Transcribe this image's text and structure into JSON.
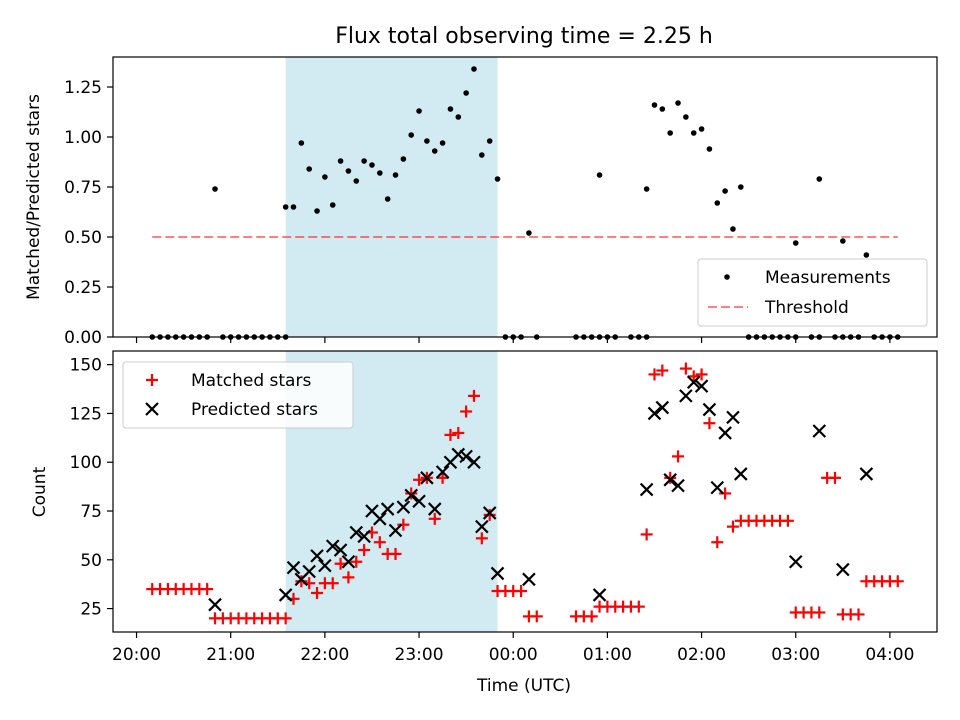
{
  "title": "Flux total observing time = 2.25 h",
  "colors": {
    "shade": "#add8e6",
    "threshold": "#ff0000",
    "matched": "#ff0000",
    "predicted": "#000000"
  },
  "chart_data": [
    {
      "type": "scatter",
      "title": "Flux total observing time = 2.25 h",
      "xlabel": "",
      "ylabel": "Matched/Predicted stars",
      "xlim": [
        "19:45",
        "04:30"
      ],
      "ylim": [
        0,
        1.4
      ],
      "yticks": [
        "0.00",
        "0.25",
        "0.50",
        "0.75",
        "1.00",
        "1.25"
      ],
      "shaded_interval": [
        "21:35",
        "23:50"
      ],
      "legend_position": "lower right",
      "legend": [
        "Measurements",
        "Threshold"
      ],
      "threshold": {
        "name": "Threshold",
        "value": 0.5,
        "x": [
          "20:10",
          "04:05"
        ]
      },
      "series": [
        {
          "name": "Measurements",
          "marker": "dot",
          "points": [
            [
              "20:10",
              0
            ],
            [
              "20:15",
              0
            ],
            [
              "20:20",
              0
            ],
            [
              "20:25",
              0
            ],
            [
              "20:30",
              0
            ],
            [
              "20:35",
              0
            ],
            [
              "20:40",
              0
            ],
            [
              "20:45",
              0
            ],
            [
              "20:50",
              0.74
            ],
            [
              "20:55",
              0
            ],
            [
              "21:00",
              0
            ],
            [
              "21:05",
              0
            ],
            [
              "21:10",
              0
            ],
            [
              "21:15",
              0
            ],
            [
              "21:20",
              0
            ],
            [
              "21:25",
              0
            ],
            [
              "21:30",
              0
            ],
            [
              "21:35",
              0
            ],
            [
              "21:35",
              0.65
            ],
            [
              "21:40",
              0.65
            ],
            [
              "21:45",
              0.97
            ],
            [
              "21:50",
              0.84
            ],
            [
              "21:55",
              0.63
            ],
            [
              "22:00",
              0.8
            ],
            [
              "22:05",
              0.66
            ],
            [
              "22:10",
              0.88
            ],
            [
              "22:15",
              0.83
            ],
            [
              "22:20",
              0.78
            ],
            [
              "22:25",
              0.88
            ],
            [
              "22:30",
              0.86
            ],
            [
              "22:35",
              0.82
            ],
            [
              "22:40",
              0.69
            ],
            [
              "22:45",
              0.81
            ],
            [
              "22:50",
              0.89
            ],
            [
              "22:55",
              1.01
            ],
            [
              "23:00",
              1.13
            ],
            [
              "23:05",
              0.98
            ],
            [
              "23:10",
              0.93
            ],
            [
              "23:15",
              0.97
            ],
            [
              "23:20",
              1.14
            ],
            [
              "23:25",
              1.1
            ],
            [
              "23:30",
              1.22
            ],
            [
              "23:35",
              1.34
            ],
            [
              "23:40",
              0.91
            ],
            [
              "23:45",
              0.98
            ],
            [
              "23:50",
              0.79
            ],
            [
              "23:55",
              0
            ],
            [
              "00:00",
              0
            ],
            [
              "00:05",
              0
            ],
            [
              "00:10",
              0.52
            ],
            [
              "00:15",
              0
            ],
            [
              "00:40",
              0
            ],
            [
              "00:45",
              0
            ],
            [
              "00:50",
              0
            ],
            [
              "00:55",
              0
            ],
            [
              "00:55",
              0.81
            ],
            [
              "01:00",
              0
            ],
            [
              "01:05",
              0
            ],
            [
              "01:15",
              0
            ],
            [
              "01:20",
              0
            ],
            [
              "01:25",
              0
            ],
            [
              "01:25",
              0.74
            ],
            [
              "01:30",
              1.16
            ],
            [
              "01:35",
              1.14
            ],
            [
              "01:40",
              1.02
            ],
            [
              "01:45",
              1.17
            ],
            [
              "01:50",
              1.1
            ],
            [
              "01:55",
              1.02
            ],
            [
              "02:00",
              1.04
            ],
            [
              "02:05",
              0.94
            ],
            [
              "02:10",
              0.67
            ],
            [
              "02:15",
              0.73
            ],
            [
              "02:20",
              0.54
            ],
            [
              "02:25",
              0.75
            ],
            [
              "02:30",
              0
            ],
            [
              "02:35",
              0
            ],
            [
              "02:40",
              0
            ],
            [
              "02:45",
              0
            ],
            [
              "02:50",
              0
            ],
            [
              "02:55",
              0
            ],
            [
              "03:00",
              0
            ],
            [
              "03:00",
              0.47
            ],
            [
              "03:10",
              0
            ],
            [
              "03:15",
              0
            ],
            [
              "03:15",
              0.79
            ],
            [
              "03:25",
              0
            ],
            [
              "03:30",
              0
            ],
            [
              "03:30",
              0.48
            ],
            [
              "03:35",
              0
            ],
            [
              "03:40",
              0
            ],
            [
              "03:45",
              0.41
            ],
            [
              "03:50",
              0
            ],
            [
              "03:55",
              0
            ],
            [
              "04:00",
              0
            ],
            [
              "04:05",
              0
            ]
          ]
        }
      ]
    },
    {
      "type": "scatter",
      "title": "",
      "xlabel": "Time (UTC)",
      "ylabel": "Count",
      "xlim": [
        "19:45",
        "04:30"
      ],
      "ylim": [
        13,
        157
      ],
      "yticks": [
        "25",
        "50",
        "75",
        "100",
        "125",
        "150"
      ],
      "xticks": [
        "20:00",
        "21:00",
        "22:00",
        "23:00",
        "00:00",
        "01:00",
        "02:00",
        "03:00",
        "04:00"
      ],
      "shaded_interval": [
        "21:35",
        "23:50"
      ],
      "legend_position": "upper left",
      "legend": [
        "Matched stars",
        "Predicted stars"
      ],
      "series": [
        {
          "name": "Matched stars",
          "marker": "plus",
          "points": [
            [
              "20:10",
              35
            ],
            [
              "20:15",
              35
            ],
            [
              "20:20",
              35
            ],
            [
              "20:25",
              35
            ],
            [
              "20:30",
              35
            ],
            [
              "20:35",
              35
            ],
            [
              "20:40",
              35
            ],
            [
              "20:45",
              35
            ],
            [
              "20:50",
              20
            ],
            [
              "20:55",
              20
            ],
            [
              "21:00",
              20
            ],
            [
              "21:05",
              20
            ],
            [
              "21:10",
              20
            ],
            [
              "21:15",
              20
            ],
            [
              "21:20",
              20
            ],
            [
              "21:25",
              20
            ],
            [
              "21:30",
              20
            ],
            [
              "21:35",
              20
            ],
            [
              "21:40",
              30
            ],
            [
              "21:45",
              39
            ],
            [
              "21:50",
              38
            ],
            [
              "21:55",
              33
            ],
            [
              "22:00",
              38
            ],
            [
              "22:05",
              38
            ],
            [
              "22:10",
              48
            ],
            [
              "22:15",
              41
            ],
            [
              "22:20",
              49
            ],
            [
              "22:25",
              55
            ],
            [
              "22:30",
              64
            ],
            [
              "22:35",
              59
            ],
            [
              "22:40",
              53
            ],
            [
              "22:45",
              53
            ],
            [
              "22:50",
              68
            ],
            [
              "22:55",
              84
            ],
            [
              "23:00",
              91
            ],
            [
              "23:05",
              92
            ],
            [
              "23:10",
              71
            ],
            [
              "23:15",
              92
            ],
            [
              "23:20",
              114
            ],
            [
              "23:25",
              115
            ],
            [
              "23:30",
              126
            ],
            [
              "23:35",
              134
            ],
            [
              "23:40",
              61
            ],
            [
              "23:45",
              73
            ],
            [
              "23:50",
              34
            ],
            [
              "23:55",
              34
            ],
            [
              "00:00",
              34
            ],
            [
              "00:05",
              34
            ],
            [
              "00:10",
              21
            ],
            [
              "00:15",
              21
            ],
            [
              "00:40",
              21
            ],
            [
              "00:45",
              21
            ],
            [
              "00:50",
              21
            ],
            [
              "00:55",
              26
            ],
            [
              "01:00",
              26
            ],
            [
              "01:05",
              26
            ],
            [
              "01:10",
              26
            ],
            [
              "01:15",
              26
            ],
            [
              "01:20",
              26
            ],
            [
              "01:25",
              63
            ],
            [
              "01:30",
              145
            ],
            [
              "01:35",
              147
            ],
            [
              "01:40",
              92
            ],
            [
              "01:45",
              103
            ],
            [
              "01:50",
              148
            ],
            [
              "01:55",
              144
            ],
            [
              "02:00",
              145
            ],
            [
              "02:05",
              120
            ],
            [
              "02:10",
              59
            ],
            [
              "02:15",
              84
            ],
            [
              "02:20",
              67
            ],
            [
              "02:25",
              70
            ],
            [
              "02:30",
              70
            ],
            [
              "02:35",
              70
            ],
            [
              "02:40",
              70
            ],
            [
              "02:45",
              70
            ],
            [
              "02:50",
              70
            ],
            [
              "02:55",
              70
            ],
            [
              "03:00",
              23
            ],
            [
              "03:05",
              23
            ],
            [
              "03:10",
              23
            ],
            [
              "03:15",
              23
            ],
            [
              "03:20",
              92
            ],
            [
              "03:25",
              92
            ],
            [
              "03:30",
              22
            ],
            [
              "03:35",
              22
            ],
            [
              "03:40",
              22
            ],
            [
              "03:45",
              39
            ],
            [
              "03:50",
              39
            ],
            [
              "03:55",
              39
            ],
            [
              "04:00",
              39
            ],
            [
              "04:05",
              39
            ]
          ]
        },
        {
          "name": "Predicted stars",
          "marker": "x",
          "points": [
            [
              "20:50",
              27
            ],
            [
              "21:35",
              32
            ],
            [
              "21:40",
              46
            ],
            [
              "21:45",
              40
            ],
            [
              "21:50",
              44
            ],
            [
              "21:55",
              52
            ],
            [
              "22:00",
              47
            ],
            [
              "22:05",
              57
            ],
            [
              "22:10",
              55
            ],
            [
              "22:15",
              49
            ],
            [
              "22:20",
              64
            ],
            [
              "22:25",
              62
            ],
            [
              "22:30",
              75
            ],
            [
              "22:35",
              71
            ],
            [
              "22:40",
              76
            ],
            [
              "22:45",
              65
            ],
            [
              "22:50",
              77
            ],
            [
              "22:55",
              83
            ],
            [
              "23:00",
              80
            ],
            [
              "23:05",
              92
            ],
            [
              "23:10",
              76
            ],
            [
              "23:15",
              95
            ],
            [
              "23:20",
              100
            ],
            [
              "23:25",
              104
            ],
            [
              "23:30",
              103
            ],
            [
              "23:35",
              100
            ],
            [
              "23:40",
              67
            ],
            [
              "23:45",
              74
            ],
            [
              "23:50",
              43
            ],
            [
              "00:10",
              40
            ],
            [
              "00:55",
              32
            ],
            [
              "01:25",
              86
            ],
            [
              "01:30",
              125
            ],
            [
              "01:35",
              128
            ],
            [
              "01:40",
              91
            ],
            [
              "01:45",
              88
            ],
            [
              "01:50",
              134
            ],
            [
              "01:55",
              141
            ],
            [
              "02:00",
              139
            ],
            [
              "02:05",
              127
            ],
            [
              "02:10",
              87
            ],
            [
              "02:15",
              115
            ],
            [
              "02:20",
              123
            ],
            [
              "02:25",
              94
            ],
            [
              "03:00",
              49
            ],
            [
              "03:15",
              116
            ],
            [
              "03:30",
              45
            ],
            [
              "03:45",
              94
            ]
          ]
        }
      ]
    }
  ]
}
